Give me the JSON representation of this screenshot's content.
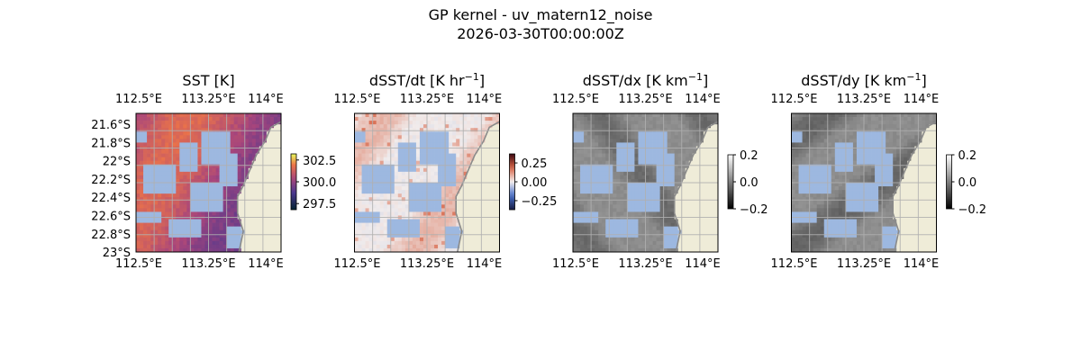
{
  "figure": {
    "title_line1": "GP kernel - uv_matern12_noise",
    "title_line2": "2026-03-30T00:00:00Z"
  },
  "colors": {
    "land": "#efecd8",
    "coast": "#8a8a8a",
    "mask": "#9db8e0",
    "grid": "#b0b0b0"
  },
  "chart_data": [
    {
      "type": "heatmap",
      "title_main": "SST [K]",
      "title_sup": "",
      "title_end": "",
      "colormap": "thermal",
      "x_ticks": [
        "112.5°E",
        "113.25°E",
        "114°E"
      ],
      "y_ticks": [
        "21.6°S",
        "21.8°S",
        "22°S",
        "22.2°S",
        "22.4°S",
        "22.6°S",
        "22.8°S",
        "23°S"
      ],
      "xlim": [
        112.5,
        114.0
      ],
      "ylim": [
        "21.5°S",
        "23.0°S"
      ],
      "colorbar": {
        "ticks": [
          "302.5",
          "300.0",
          "297.5"
        ],
        "range": [
          296.8,
          303.2
        ]
      }
    },
    {
      "type": "heatmap",
      "title_main": "dSST/dt [K hr",
      "title_sup": "−1",
      "title_end": "]",
      "colormap": "balance",
      "x_ticks": [
        "112.5°E",
        "113.25°E",
        "114°E"
      ],
      "y_ticks": [],
      "colorbar": {
        "ticks": [
          "0.25",
          "0.00",
          "−0.25"
        ],
        "range": [
          -0.37,
          0.37
        ]
      }
    },
    {
      "type": "heatmap",
      "title_main": "dSST/dx [K km",
      "title_sup": "−1",
      "title_end": "]",
      "colormap": "gray",
      "x_ticks": [
        "112.5°E",
        "113.25°E",
        "114°E"
      ],
      "y_ticks": [],
      "colorbar": {
        "ticks": [
          "0.2",
          "0.0",
          "−0.2"
        ],
        "range": [
          -0.2,
          0.2
        ]
      }
    },
    {
      "type": "heatmap",
      "title_main": "dSST/dy [K km",
      "title_sup": "−1",
      "title_end": "]",
      "colormap": "gray",
      "x_ticks": [
        "112.5°E",
        "113.25°E",
        "114°E"
      ],
      "y_ticks": [],
      "colorbar": {
        "ticks": [
          "0.2",
          "0.0",
          "−0.2"
        ],
        "range": [
          -0.2,
          0.2
        ]
      }
    }
  ]
}
